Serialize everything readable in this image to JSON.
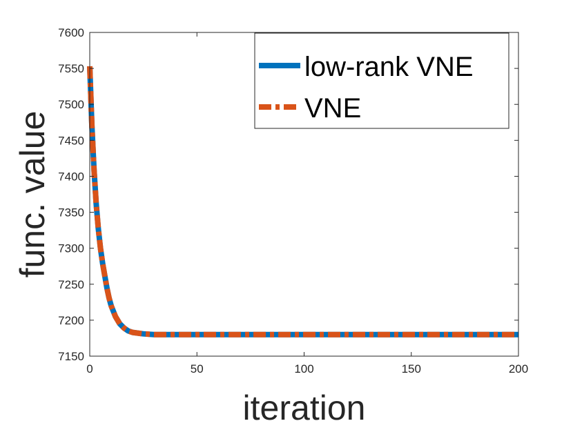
{
  "chart_data": {
    "type": "line",
    "xlabel": "iteration",
    "ylabel": "func. value",
    "xlim": [
      0,
      200
    ],
    "ylim": [
      7150,
      7600
    ],
    "xticks": [
      0,
      50,
      100,
      150,
      200
    ],
    "yticks": [
      7150,
      7200,
      7250,
      7300,
      7350,
      7400,
      7450,
      7500,
      7550,
      7600
    ],
    "grid": false,
    "legend_position": "top-right",
    "series": [
      {
        "name": "low-rank VNE",
        "color": "#0072BD",
        "style": "solid",
        "x": [
          0,
          1,
          2,
          3,
          4,
          5,
          6,
          7,
          8,
          9,
          10,
          12,
          14,
          16,
          18,
          20,
          25,
          30,
          40,
          50,
          75,
          100,
          125,
          150,
          175,
          200
        ],
        "y": [
          7553,
          7470,
          7409,
          7362,
          7327,
          7300,
          7279,
          7262,
          7245,
          7231,
          7220,
          7205,
          7195,
          7189,
          7185,
          7183,
          7181,
          7180,
          7180,
          7180,
          7180,
          7180,
          7180,
          7180,
          7180,
          7180
        ]
      },
      {
        "name": "VNE",
        "color": "#D95319",
        "style": "dash-dot",
        "x": [
          0,
          1,
          2,
          3,
          4,
          5,
          6,
          7,
          8,
          9,
          10,
          12,
          14,
          16,
          18,
          20,
          25,
          30,
          40,
          50,
          75,
          100,
          125,
          150,
          175,
          200
        ],
        "y": [
          7553,
          7470,
          7409,
          7362,
          7327,
          7300,
          7279,
          7262,
          7245,
          7231,
          7220,
          7205,
          7195,
          7189,
          7185,
          7183,
          7181,
          7180,
          7180,
          7180,
          7180,
          7180,
          7180,
          7180,
          7180,
          7180
        ]
      }
    ]
  }
}
